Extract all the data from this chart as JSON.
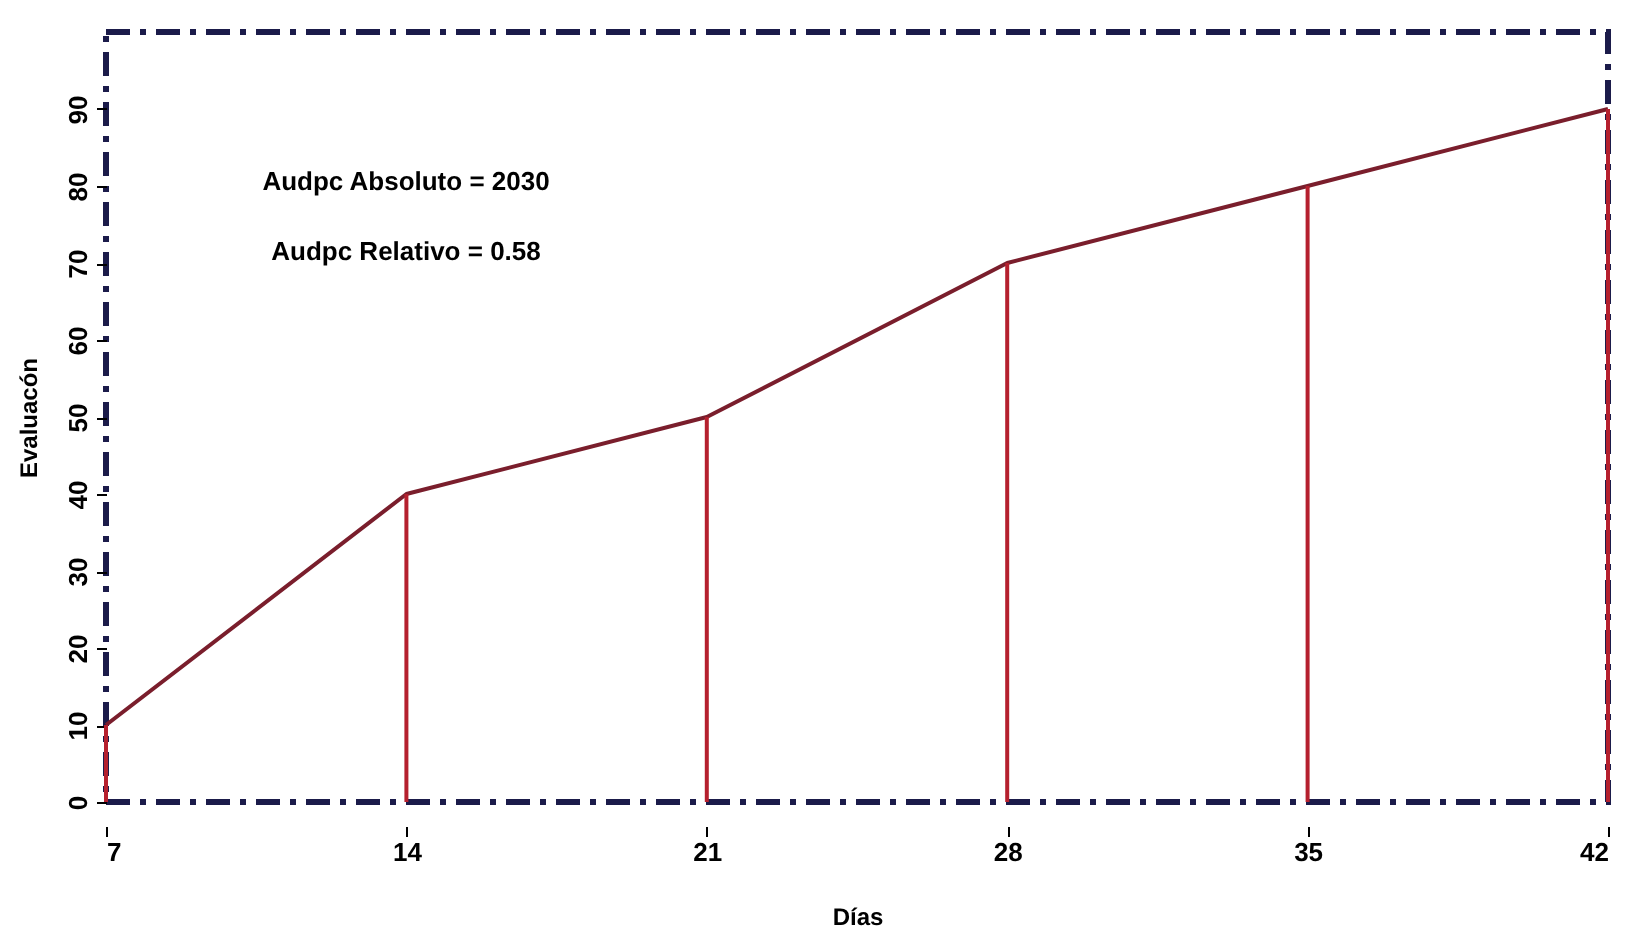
{
  "chart_data": {
    "type": "line",
    "xlabel": "Días",
    "ylabel": "Evaluacón",
    "x": [
      7,
      14,
      21,
      28,
      35,
      42
    ],
    "series": [
      {
        "color": "#7a1e2c",
        "values": [
          10,
          40,
          50,
          70,
          80,
          90
        ]
      },
      {
        "type": "bar",
        "color": "#b5202e",
        "values": [
          10,
          40,
          50,
          70,
          80,
          90
        ]
      }
    ],
    "annotations": [
      "Audpc Absoluto = 2030",
      "Audpc Relativo = 0.58"
    ],
    "xlim": [
      7,
      42
    ],
    "xticks": [
      7,
      14,
      21,
      28,
      35,
      42
    ],
    "ylim": [
      0,
      100
    ],
    "yticks": [
      0,
      10,
      20,
      30,
      40,
      50,
      60,
      70,
      80,
      90
    ],
    "grid": false,
    "marker": "none",
    "line_style": "solid"
  }
}
